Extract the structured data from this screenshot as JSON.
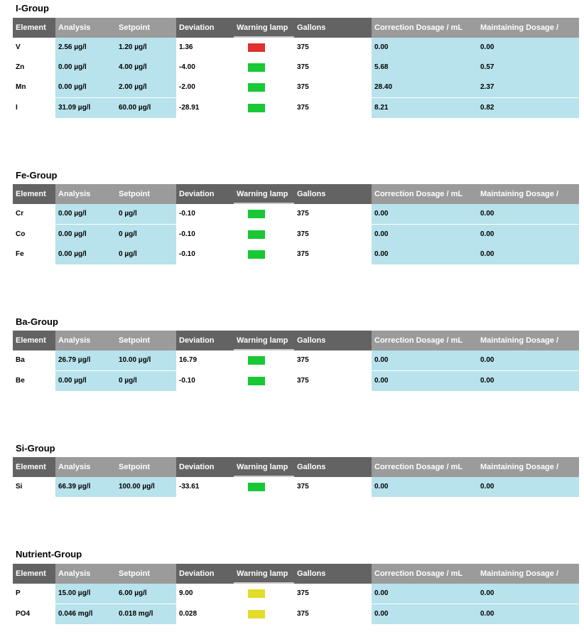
{
  "headers": [
    "Element",
    "Analysis",
    "Setpoint",
    "Deviation",
    "Warning lamp",
    "Gallons",
    "Correction Dosage / mL",
    "Maintaining Dosage /"
  ],
  "lamp_colors": {
    "red": "#e03030",
    "green": "#18c835",
    "yellow": "#e3dc2b"
  },
  "groups": [
    {
      "title": "I-Group",
      "rows": [
        {
          "element": "V",
          "analysis": "2.56 µg/l",
          "setpoint": "1.20 µg/l",
          "deviation": "1.36",
          "lamp": "red",
          "gallons": "375",
          "correction": "0.00",
          "maintaining": "0.00"
        },
        {
          "element": "Zn",
          "analysis": "0.00 µg/l",
          "setpoint": "4.00 µg/l",
          "deviation": "-4.00",
          "lamp": "green",
          "gallons": "375",
          "correction": "5.68",
          "maintaining": "0.57"
        },
        {
          "element": "Mn",
          "analysis": "0.00 µg/l",
          "setpoint": "2.00 µg/l",
          "deviation": "-2.00",
          "lamp": "green",
          "gallons": "375",
          "correction": "28.40",
          "maintaining": "2.37"
        },
        {
          "element": "I",
          "analysis": "31.09 µg/l",
          "setpoint": "60.00 µg/l",
          "deviation": "-28.91",
          "lamp": "green",
          "gallons": "375",
          "correction": "8.21",
          "maintaining": "0.82"
        }
      ]
    },
    {
      "title": "Fe-Group",
      "rows": [
        {
          "element": "Cr",
          "analysis": "0.00 µg/l",
          "setpoint": "0 µg/l",
          "deviation": "-0.10",
          "lamp": "green",
          "gallons": "375",
          "correction": "0.00",
          "maintaining": "0.00"
        },
        {
          "element": "Co",
          "analysis": "0.00 µg/l",
          "setpoint": "0 µg/l",
          "deviation": "-0.10",
          "lamp": "green",
          "gallons": "375",
          "correction": "0.00",
          "maintaining": "0.00"
        },
        {
          "element": "Fe",
          "analysis": "0.00 µg/l",
          "setpoint": "0 µg/l",
          "deviation": "-0.10",
          "lamp": "green",
          "gallons": "375",
          "correction": "0.00",
          "maintaining": "0.00"
        }
      ]
    },
    {
      "title": "Ba-Group",
      "rows": [
        {
          "element": "Ba",
          "analysis": "26.79 µg/l",
          "setpoint": "10.00 µg/l",
          "deviation": "16.79",
          "lamp": "green",
          "gallons": "375",
          "correction": "0.00",
          "maintaining": "0.00"
        },
        {
          "element": "Be",
          "analysis": "0.00 µg/l",
          "setpoint": "0 µg/l",
          "deviation": "-0.10",
          "lamp": "green",
          "gallons": "375",
          "correction": "0.00",
          "maintaining": "0.00"
        }
      ]
    },
    {
      "title": "Si-Group",
      "rows": [
        {
          "element": "Si",
          "analysis": "66.39 µg/l",
          "setpoint": "100.00 µg/l",
          "deviation": "-33.61",
          "lamp": "green",
          "gallons": "375",
          "correction": "0.00",
          "maintaining": "0.00"
        }
      ]
    },
    {
      "title": "Nutrient-Group",
      "rows": [
        {
          "element": "P",
          "analysis": "15.00 µg/l",
          "setpoint": "6.00 µg/l",
          "deviation": "9.00",
          "lamp": "yellow",
          "gallons": "375",
          "correction": "0.00",
          "maintaining": "0.00"
        },
        {
          "element": "PO4",
          "analysis": "0.046 mg/l",
          "setpoint": "0.018 mg/l",
          "deviation": "0.028",
          "lamp": "yellow",
          "gallons": "375",
          "correction": "0.00",
          "maintaining": "0.00"
        }
      ]
    }
  ]
}
